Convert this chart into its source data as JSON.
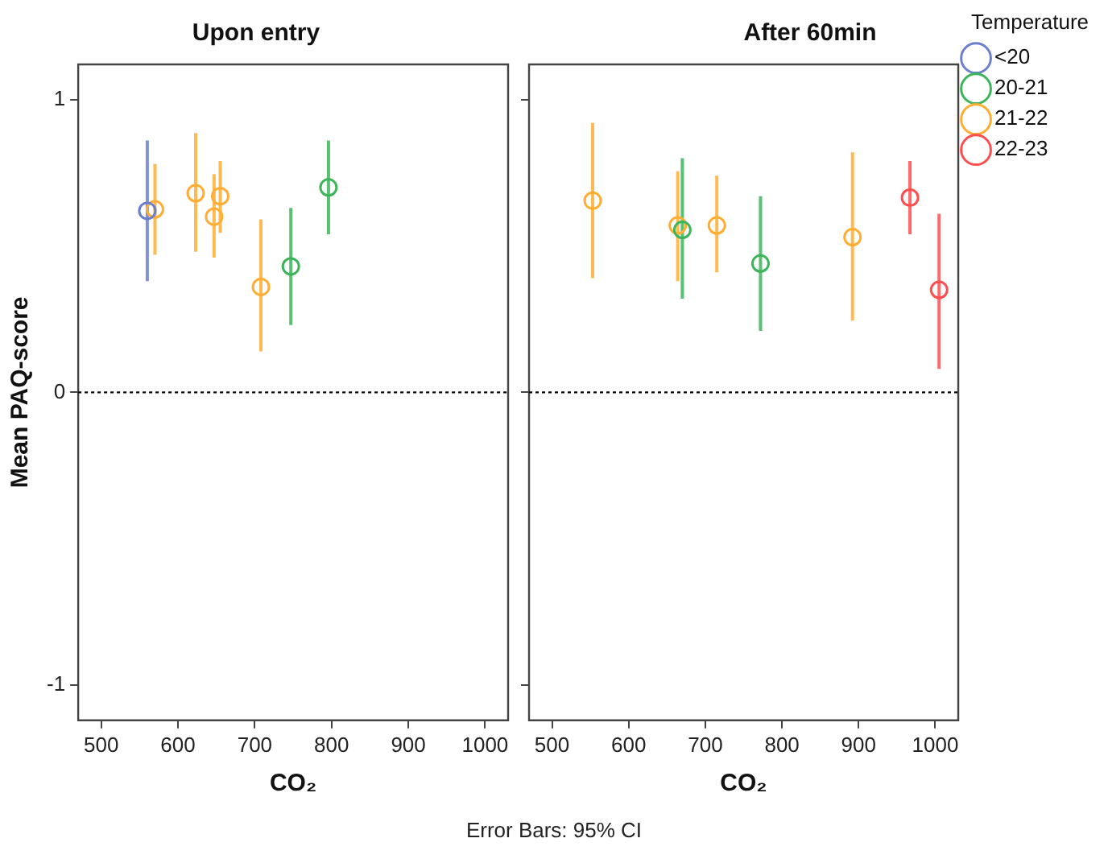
{
  "chart_data": [
    {
      "type": "scatter",
      "title": "Upon entry",
      "xlabel": "CO₂",
      "ylabel": "Mean PAQ-score",
      "xlim": [
        470,
        1030
      ],
      "xticks": [
        500,
        600,
        700,
        800,
        900,
        1000
      ],
      "ylim": [
        -1.12,
        1.12
      ],
      "yticks": [
        -1,
        0,
        1
      ],
      "marker": "circle",
      "grid": false,
      "legend": false,
      "ref_lines": [
        {
          "axis": "y",
          "value": 0,
          "line_style": "dotted",
          "color": "#000000"
        }
      ],
      "annotations": [
        "Error Bars: 95% CI"
      ],
      "series": [
        {
          "color": "#6b7fd0",
          "x": [
            560
          ],
          "values": [
            0.62
          ],
          "errors": [
            [
              0.38,
              0.86
            ]
          ]
        },
        {
          "color": "#3cb55a",
          "x": [
            747,
            796
          ],
          "values": [
            0.43,
            0.7
          ],
          "errors": [
            [
              0.23,
              0.63
            ],
            [
              0.54,
              0.86
            ]
          ]
        },
        {
          "color": "#ffad33",
          "x": [
            570,
            623,
            647,
            655,
            708
          ],
          "values": [
            0.625,
            0.68,
            0.6,
            0.67,
            0.36
          ],
          "errors": [
            [
              0.47,
              0.78
            ],
            [
              0.48,
              0.885
            ],
            [
              0.46,
              0.745
            ],
            [
              0.545,
              0.79
            ],
            [
              0.14,
              0.59
            ]
          ]
        }
      ]
    },
    {
      "type": "scatter",
      "title": "After 60min",
      "xlabel": "CO₂",
      "legend_title": "Temperature",
      "xlim": [
        470,
        1030
      ],
      "xticks": [
        500,
        600,
        700,
        800,
        900,
        1000
      ],
      "ylim": [
        -1.12,
        1.12
      ],
      "yticks": [
        -1,
        0,
        1
      ],
      "tick_labels": "x",
      "marker": "circle",
      "grid": false,
      "legend": "right",
      "ref_lines": [
        {
          "axis": "y",
          "value": 0,
          "line_style": "dotted",
          "color": "#000000"
        }
      ],
      "series": [
        {
          "name": "<20",
          "color": "#6b7fd0"
        },
        {
          "name": "20-21",
          "color": "#3cb55a",
          "x": [
            670,
            772
          ],
          "values": [
            0.555,
            0.44
          ],
          "errors": [
            [
              0.32,
              0.8
            ],
            [
              0.21,
              0.67
            ]
          ]
        },
        {
          "name": "21-22",
          "color": "#ffad33",
          "x": [
            553,
            664,
            715,
            892
          ],
          "values": [
            0.655,
            0.57,
            0.57,
            0.53
          ],
          "errors": [
            [
              0.39,
              0.92
            ],
            [
              0.38,
              0.755
            ],
            [
              0.41,
              0.74
            ],
            [
              0.245,
              0.82
            ]
          ]
        },
        {
          "name": "22-23",
          "color": "#ff4d4d",
          "x": [
            967,
            1005
          ],
          "values": [
            0.665,
            0.35
          ],
          "errors": [
            [
              0.54,
              0.79
            ],
            [
              0.08,
              0.61
            ]
          ]
        }
      ]
    }
  ]
}
